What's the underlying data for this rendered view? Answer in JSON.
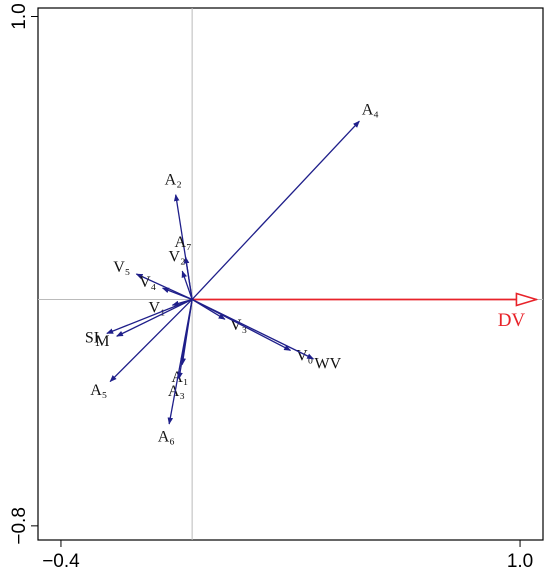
{
  "chart_data": {
    "type": "biplot",
    "xlim": [
      -0.47,
      1.07
    ],
    "ylim": [
      -0.85,
      1.03
    ],
    "xticks": [
      {
        "value": -0.4,
        "label": "−0.4"
      },
      {
        "value": 1,
        "label": "1.0"
      }
    ],
    "yticks": [
      {
        "value": -0.8,
        "label": "−0.8"
      },
      {
        "value": 1,
        "label": "1.0"
      }
    ],
    "zero_lines": true,
    "series": [
      {
        "name": "DV",
        "x": 1.05,
        "y": 0,
        "color": "#e8232a",
        "arrowhead": "open"
      },
      {
        "name": "A₄",
        "x": 0.51,
        "y": 0.63,
        "color": "#1f1f8a"
      },
      {
        "name": "A₂",
        "x": -0.05,
        "y": 0.37,
        "color": "#1f1f8a"
      },
      {
        "name": "A₇",
        "x": -0.02,
        "y": 0.15,
        "color": "#1f1f8a"
      },
      {
        "name": "V₂",
        "x": -0.03,
        "y": 0.1,
        "color": "#1f1f8a"
      },
      {
        "name": "V₅",
        "x": -0.17,
        "y": 0.09,
        "color": "#1f1f8a"
      },
      {
        "name": "V₄",
        "x": -0.09,
        "y": 0.04,
        "color": "#1f1f8a"
      },
      {
        "name": "V₁",
        "x": -0.06,
        "y": -0.02,
        "color": "#1f1f8a"
      },
      {
        "name": "SI",
        "x": -0.26,
        "y": -0.12,
        "color": "#1f1f8a"
      },
      {
        "name": "M",
        "x": -0.23,
        "y": -0.13,
        "color": "#1f1f8a"
      },
      {
        "name": "A₅",
        "x": -0.25,
        "y": -0.29,
        "color": "#1f1f8a"
      },
      {
        "name": "A₁",
        "x": -0.03,
        "y": -0.23,
        "color": "#1f1f8a"
      },
      {
        "name": "A₃",
        "x": -0.04,
        "y": -0.28,
        "color": "#1f1f8a"
      },
      {
        "name": "A₆",
        "x": -0.07,
        "y": -0.44,
        "color": "#1f1f8a"
      },
      {
        "name": "V₃",
        "x": 0.1,
        "y": -0.07,
        "color": "#1f1f8a"
      },
      {
        "name": "V₀",
        "x": 0.3,
        "y": -0.18,
        "color": "#1f1f8a"
      },
      {
        "name": "WV",
        "x": 0.37,
        "y": -0.21,
        "color": "#1f1f8a"
      }
    ]
  }
}
